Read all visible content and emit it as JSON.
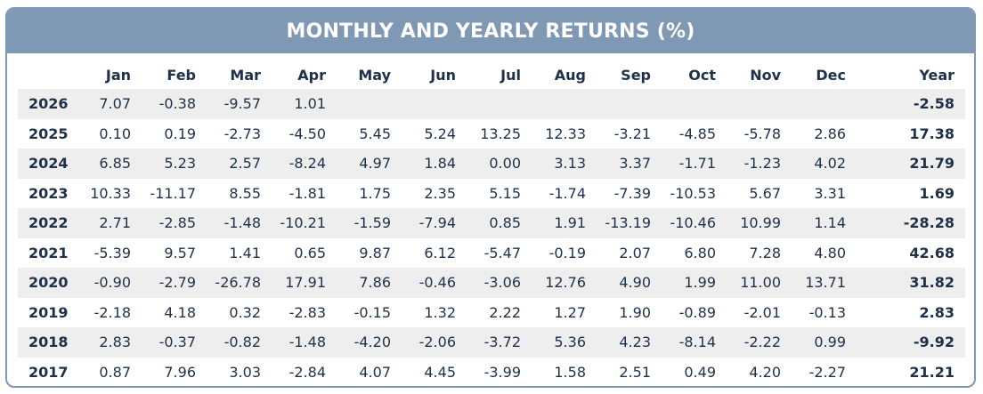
{
  "chart_data": {
    "type": "table",
    "title": "MONTHLY AND YEARLY RETURNS (%)",
    "columns": [
      "",
      "Jan",
      "Feb",
      "Mar",
      "Apr",
      "May",
      "Jun",
      "Jul",
      "Aug",
      "Sep",
      "Oct",
      "Nov",
      "Dec",
      "Year"
    ],
    "rows": [
      {
        "year": "2026",
        "months": [
          "7.07",
          "-0.38",
          "-9.57",
          "1.01",
          "",
          "",
          "",
          "",
          "",
          "",
          "",
          ""
        ],
        "total": "-2.58"
      },
      {
        "year": "2025",
        "months": [
          "0.10",
          "0.19",
          "-2.73",
          "-4.50",
          "5.45",
          "5.24",
          "13.25",
          "12.33",
          "-3.21",
          "-4.85",
          "-5.78",
          "2.86"
        ],
        "total": "17.38"
      },
      {
        "year": "2024",
        "months": [
          "6.85",
          "5.23",
          "2.57",
          "-8.24",
          "4.97",
          "1.84",
          "0.00",
          "3.13",
          "3.37",
          "-1.71",
          "-1.23",
          "4.02"
        ],
        "total": "21.79"
      },
      {
        "year": "2023",
        "months": [
          "10.33",
          "-11.17",
          "8.55",
          "-1.81",
          "1.75",
          "2.35",
          "5.15",
          "-1.74",
          "-7.39",
          "-10.53",
          "5.67",
          "3.31"
        ],
        "total": "1.69"
      },
      {
        "year": "2022",
        "months": [
          "2.71",
          "-2.85",
          "-1.48",
          "-10.21",
          "-1.59",
          "-7.94",
          "0.85",
          "1.91",
          "-13.19",
          "-10.46",
          "10.99",
          "1.14"
        ],
        "total": "-28.28"
      },
      {
        "year": "2021",
        "months": [
          "-5.39",
          "9.57",
          "1.41",
          "0.65",
          "9.87",
          "6.12",
          "-5.47",
          "-0.19",
          "2.07",
          "6.80",
          "7.28",
          "4.80"
        ],
        "total": "42.68"
      },
      {
        "year": "2020",
        "months": [
          "-0.90",
          "-2.79",
          "-26.78",
          "17.91",
          "7.86",
          "-0.46",
          "-3.06",
          "12.76",
          "4.90",
          "1.99",
          "11.00",
          "13.71"
        ],
        "total": "31.82"
      },
      {
        "year": "2019",
        "months": [
          "-2.18",
          "4.18",
          "0.32",
          "-2.83",
          "-0.15",
          "1.32",
          "2.22",
          "1.27",
          "1.90",
          "-0.89",
          "-2.01",
          "-0.13"
        ],
        "total": "2.83"
      },
      {
        "year": "2018",
        "months": [
          "2.83",
          "-0.37",
          "-0.82",
          "-1.48",
          "-4.20",
          "-2.06",
          "-3.72",
          "5.36",
          "4.23",
          "-8.14",
          "-2.22",
          "0.99"
        ],
        "total": "-9.92"
      },
      {
        "year": "2017",
        "months": [
          "0.87",
          "7.96",
          "3.03",
          "-2.84",
          "4.07",
          "4.45",
          "-3.99",
          "1.58",
          "2.51",
          "0.49",
          "4.20",
          "-2.27"
        ],
        "total": "21.21"
      }
    ]
  },
  "colors": {
    "header_bar": "#7f98b4",
    "text": "#1e3148",
    "stripe": "#eeeeee"
  }
}
